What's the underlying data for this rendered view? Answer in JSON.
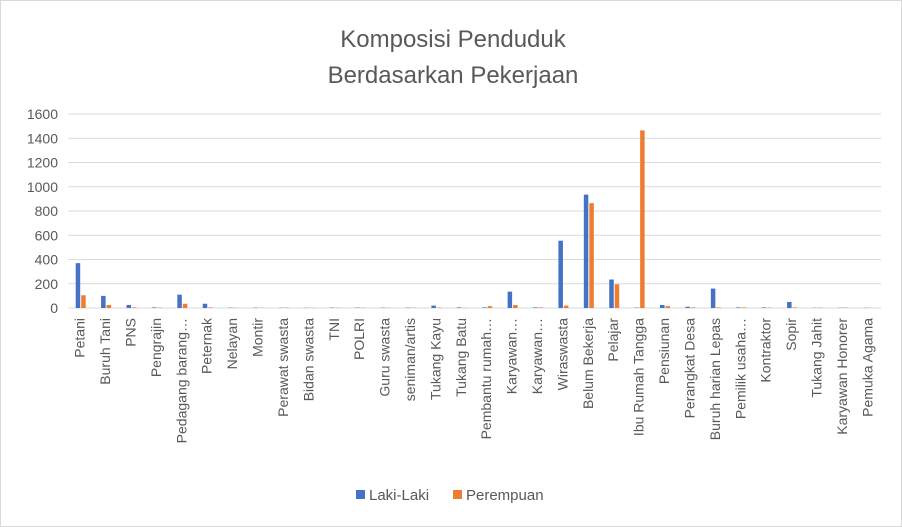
{
  "chart_data": {
    "type": "bar",
    "title_lines": [
      "Komposisi Penduduk",
      "Berdasarkan Pekerjaan"
    ],
    "xlabel": "",
    "ylabel": "",
    "ylim": [
      0,
      1600
    ],
    "yticks": [
      0,
      200,
      400,
      600,
      800,
      1000,
      1200,
      1400,
      1600
    ],
    "grid": true,
    "legend_position": "bottom",
    "categories": [
      "Petani",
      "Buruh Tani",
      "PNS",
      "Pengrajin",
      "Pedagang barang…",
      "Peternak",
      "Nelayan",
      "Montir",
      "Perawat swasta",
      "Bidan swasta",
      "TNI",
      "POLRI",
      "Guru swasta",
      "seniman/artis",
      "Tukang Kayu",
      "Tukang Batu",
      "Pembantu rumah…",
      "Karyawan…",
      "Karyawan…",
      "Wiraswasta",
      "Belum Bekerja",
      "Pelajar",
      "Ibu Rumah Tangga",
      "Pensiunan",
      "Perangkat Desa",
      "Buruh harian Lepas",
      "Pemilik usaha…",
      "Kontraktor",
      "Sopir",
      "Tukang Jahit",
      "Karyawan Honorer",
      "Pemuka Agama"
    ],
    "series": [
      {
        "name": "Laki-Laki",
        "color": "#4472c4",
        "values": [
          370,
          100,
          25,
          5,
          110,
          35,
          3,
          3,
          2,
          2,
          3,
          3,
          3,
          3,
          20,
          5,
          5,
          135,
          5,
          555,
          935,
          235,
          3,
          25,
          10,
          160,
          5,
          5,
          50,
          2,
          2,
          2
        ]
      },
      {
        "name": "Perempuan",
        "color": "#ed7d31",
        "values": [
          105,
          25,
          5,
          3,
          35,
          5,
          2,
          2,
          3,
          2,
          2,
          2,
          2,
          2,
          3,
          2,
          15,
          25,
          5,
          20,
          865,
          195,
          1465,
          15,
          5,
          5,
          5,
          3,
          5,
          3,
          3,
          2
        ]
      }
    ]
  }
}
